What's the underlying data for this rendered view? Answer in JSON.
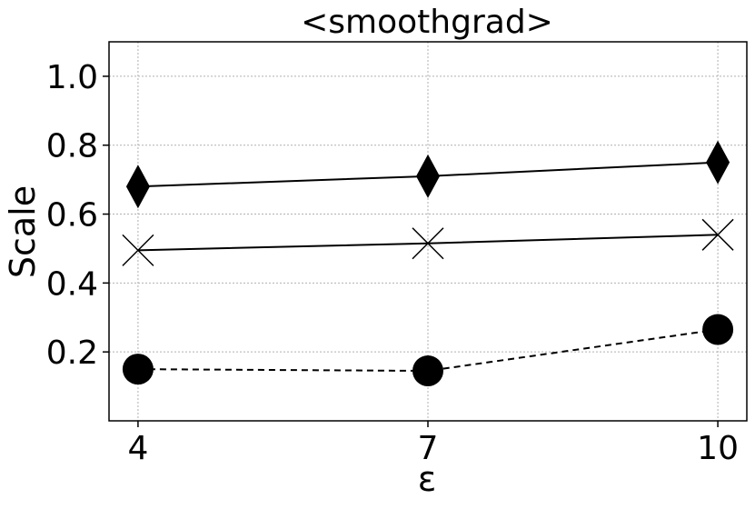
{
  "chart_data": {
    "type": "line",
    "title": "<smoothgrad>",
    "xlabel": "ε",
    "ylabel": "Scale",
    "x": [
      4,
      7,
      10
    ],
    "x_tick_labels": [
      "4",
      "7",
      "10"
    ],
    "y_tick_labels": [
      "0.2",
      "0.4",
      "0.6",
      "0.8",
      "1.0"
    ],
    "y_ticks": [
      0.2,
      0.4,
      0.6,
      0.8,
      1.0
    ],
    "xlim": [
      3.7,
      10.3
    ],
    "ylim": [
      0.0,
      1.1
    ],
    "grid": true,
    "series": [
      {
        "marker": "diamond",
        "line_style": "solid",
        "values": [
          0.68,
          0.71,
          0.75
        ]
      },
      {
        "marker": "x",
        "line_style": "solid",
        "values": [
          0.495,
          0.515,
          0.54
        ]
      },
      {
        "marker": "circle",
        "line_style": "dashed",
        "values": [
          0.15,
          0.145,
          0.265
        ]
      }
    ],
    "colors": {
      "line": "#000000",
      "grid": "#b0b0b0"
    }
  }
}
